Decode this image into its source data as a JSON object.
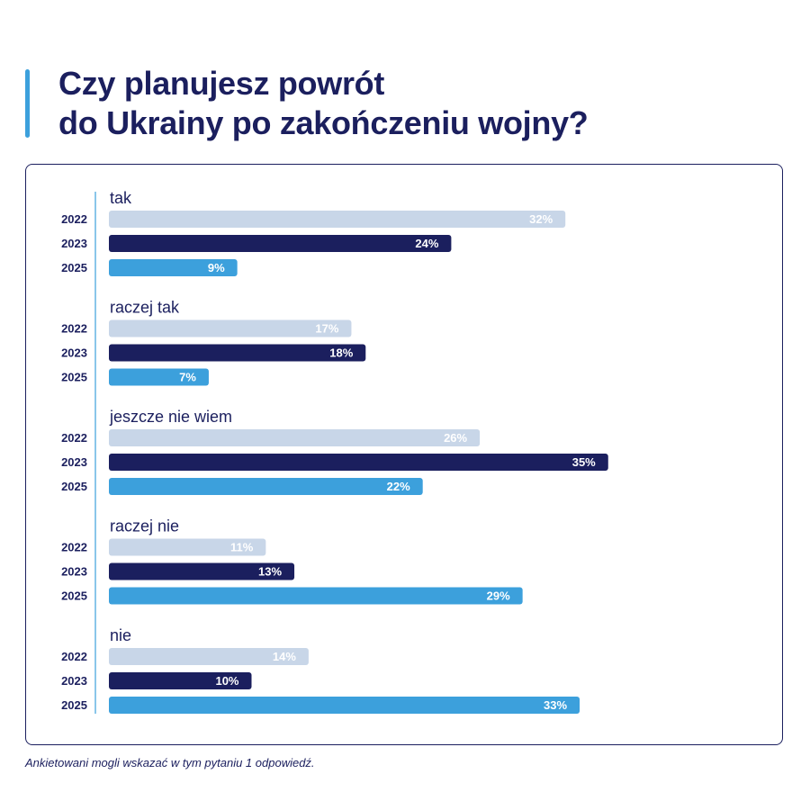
{
  "title": {
    "line1": "Czy planujesz powrót",
    "line2": "do Ukrainy po zakończeniu wojny?"
  },
  "footnote": "Ankietowani mogli wskazać w tym pytaniu 1 odpowiedź.",
  "colors": {
    "2022": "#c8d6e8",
    "2023": "#1b1f5e",
    "2025": "#3ca0dc",
    "text": "#1b1f5e",
    "axis": "#3ca0dc"
  },
  "chart_data": {
    "type": "bar",
    "orientation": "horizontal",
    "categories": [
      "tak",
      "raczej tak",
      "jeszcze nie wiem",
      "raczej nie",
      "nie"
    ],
    "series": [
      {
        "name": "2022",
        "values": [
          32,
          17,
          26,
          11,
          14
        ]
      },
      {
        "name": "2023",
        "values": [
          24,
          18,
          35,
          13,
          10
        ]
      },
      {
        "name": "2025",
        "values": [
          9,
          7,
          22,
          29,
          33
        ]
      }
    ],
    "value_suffix": "%",
    "grid": false
  }
}
